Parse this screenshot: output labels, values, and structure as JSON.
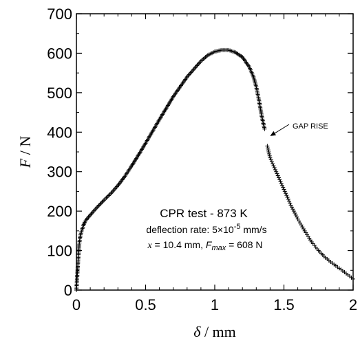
{
  "chart_data": {
    "type": "scatter",
    "marker": "plus",
    "color": "#000000",
    "xlabel_symbol": "δ",
    "xlabel_unit": " / mm",
    "ylabel_symbol": "F",
    "ylabel_unit": " / N",
    "xlim": [
      0,
      2
    ],
    "ylim": [
      0,
      700
    ],
    "xticks": [
      0,
      0.5,
      1,
      1.5,
      2
    ],
    "xtick_labels": [
      "0",
      "0.5",
      "1",
      "1.5",
      "2"
    ],
    "yticks": [
      0,
      100,
      200,
      300,
      400,
      500,
      600,
      700
    ],
    "ytick_labels": [
      "0",
      "100",
      "200",
      "300",
      "400",
      "500",
      "600",
      "700"
    ],
    "grid": false,
    "annotation": {
      "title": "CPR test - 873 K",
      "rate_prefix": "deflection rate: 5×10",
      "rate_exp": "-5",
      "rate_suffix": " mm/s",
      "x_symbol": "x",
      "x_value": " = 10.4 mm, ",
      "fmax_symbol": "F",
      "fmax_sub": "max",
      "fmax_value": " = 608 N"
    },
    "arrow_label": "GAP RISE",
    "arrow_target": [
      1.38,
      385
    ],
    "loading_curve": [
      [
        0.0,
        0
      ],
      [
        0.005,
        30
      ],
      [
        0.01,
        60
      ],
      [
        0.015,
        90
      ],
      [
        0.02,
        115
      ],
      [
        0.025,
        130
      ],
      [
        0.03,
        140
      ],
      [
        0.04,
        152
      ],
      [
        0.05,
        163
      ],
      [
        0.06,
        172
      ],
      [
        0.08,
        182
      ],
      [
        0.1,
        190
      ],
      [
        0.12,
        198
      ],
      [
        0.15,
        210
      ],
      [
        0.2,
        228
      ],
      [
        0.25,
        245
      ],
      [
        0.3,
        265
      ],
      [
        0.35,
        288
      ],
      [
        0.4,
        315
      ],
      [
        0.45,
        343
      ],
      [
        0.5,
        372
      ],
      [
        0.55,
        402
      ],
      [
        0.6,
        432
      ],
      [
        0.65,
        461
      ],
      [
        0.7,
        490
      ],
      [
        0.75,
        515
      ],
      [
        0.8,
        540
      ],
      [
        0.85,
        560
      ],
      [
        0.9,
        580
      ],
      [
        0.95,
        595
      ],
      [
        1.0,
        604
      ],
      [
        1.05,
        608
      ],
      [
        1.1,
        608
      ],
      [
        1.15,
        602
      ],
      [
        1.2,
        590
      ],
      [
        1.25,
        565
      ],
      [
        1.28,
        540
      ],
      [
        1.3,
        515
      ],
      [
        1.32,
        480
      ],
      [
        1.34,
        440
      ],
      [
        1.36,
        408
      ]
    ],
    "post_gap_curve": [
      [
        1.38,
        365
      ],
      [
        1.39,
        350
      ],
      [
        1.4,
        335
      ],
      [
        1.45,
        295
      ],
      [
        1.5,
        255
      ],
      [
        1.55,
        215
      ],
      [
        1.6,
        180
      ],
      [
        1.65,
        150
      ],
      [
        1.7,
        122
      ],
      [
        1.75,
        100
      ],
      [
        1.8,
        82
      ],
      [
        1.85,
        68
      ],
      [
        1.9,
        55
      ],
      [
        1.95,
        42
      ],
      [
        2.0,
        28
      ]
    ]
  }
}
